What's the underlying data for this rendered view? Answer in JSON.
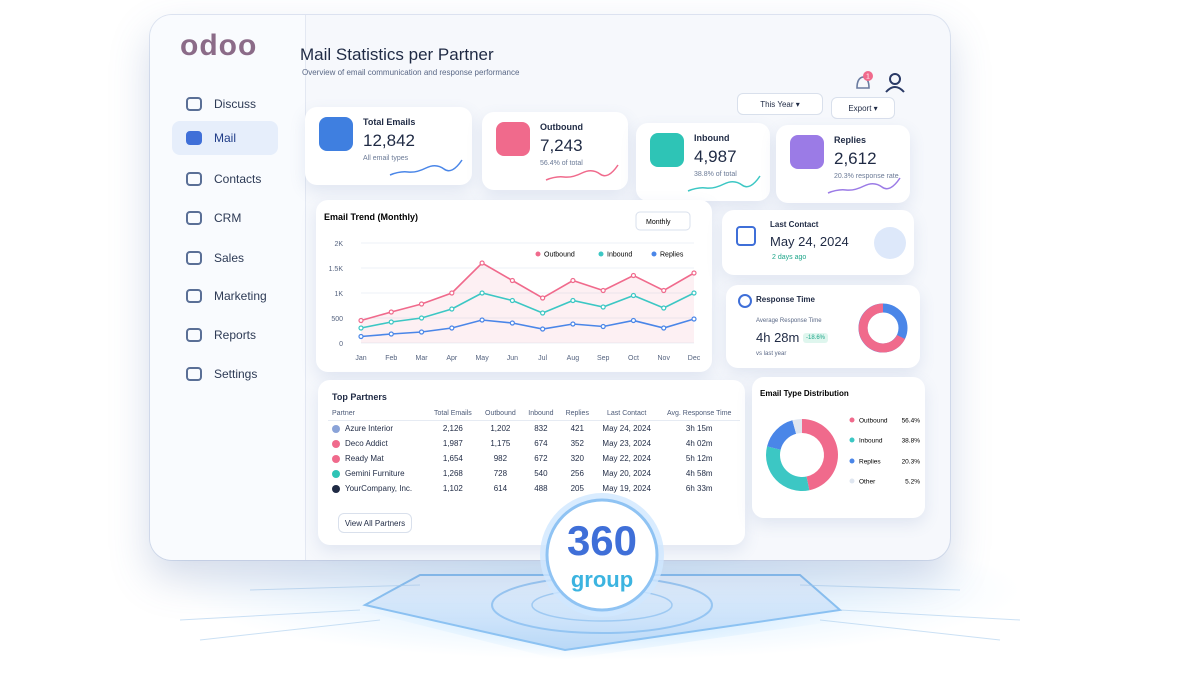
{
  "brand": "odoo",
  "nav": [
    "Discuss",
    "Mail",
    "Contacts",
    "CRM",
    "Sales",
    "Marketing",
    "Reports",
    "Settings"
  ],
  "header": {
    "title": "Mail Statistics per Partner",
    "subtitle": "Overview of email communication and response performance",
    "notifications": "1",
    "period": "This Year",
    "export": "Export"
  },
  "kpis": [
    {
      "label": "Total Emails",
      "value": "12,842",
      "note": "All email types"
    },
    {
      "label": "Outbound",
      "value": "7,243",
      "note": "56.4% of total"
    },
    {
      "label": "Inbound",
      "value": "4,987",
      "note": "38.8% of total"
    },
    {
      "label": "Replies",
      "value": "2,612",
      "note": "20.3% response rate"
    }
  ],
  "email_trend": {
    "type": "line",
    "title": "Email Trend (Monthly)",
    "granularity": "Monthly",
    "categories": [
      "Jan",
      "Feb",
      "Mar",
      "Apr",
      "May",
      "Jun",
      "Jul",
      "Aug",
      "Sep",
      "Oct",
      "Nov",
      "Dec"
    ],
    "series": [
      {
        "name": "Outbound",
        "color": "#f06a8c",
        "values": [
          450,
          620,
          780,
          1000,
          1600,
          1250,
          900,
          1250,
          1050,
          1350,
          1050,
          1400
        ]
      },
      {
        "name": "Inbound",
        "color": "#3cc7c4",
        "values": [
          300,
          420,
          500,
          680,
          1000,
          850,
          600,
          850,
          720,
          950,
          700,
          1000
        ]
      },
      {
        "name": "Replies",
        "color": "#4a86e8",
        "values": [
          130,
          180,
          220,
          300,
          460,
          400,
          280,
          380,
          330,
          450,
          300,
          480
        ]
      }
    ],
    "ylim": [
      0,
      2000
    ],
    "yticks": [
      0,
      500,
      {
        "value": 1000,
        "label": "1K"
      },
      {
        "value": 1500,
        "label": "1.5K"
      },
      {
        "value": 2000,
        "label": "2K"
      }
    ],
    "grid": true
  },
  "last_contact": {
    "title": "Last Contact",
    "date": "May 24, 2024",
    "ago": "2 days ago"
  },
  "response_time": {
    "title": "Response Time",
    "label": "Average Response Time",
    "value": "4h 28m",
    "change": "-18.6%",
    "compare": "vs last year"
  },
  "table": {
    "title": "Top Partners",
    "columns": [
      "Partner",
      "Total Emails",
      "Outbound",
      "Inbound",
      "Replies",
      "Last Contact",
      "Avg. Response Time"
    ],
    "rows": [
      [
        "Azure Interior",
        "2,126",
        "1,202",
        "832",
        "421",
        "May 24, 2024",
        "3h 15m"
      ],
      [
        "Deco Addict",
        "1,987",
        "1,175",
        "674",
        "352",
        "May 23, 2024",
        "4h 02m"
      ],
      [
        "Ready Mat",
        "1,654",
        "982",
        "672",
        "320",
        "May 22, 2024",
        "5h 12m"
      ],
      [
        "Gemini Furniture",
        "1,268",
        "728",
        "540",
        "256",
        "May 20, 2024",
        "4h 58m"
      ],
      [
        "YourCompany, Inc.",
        "1,102",
        "614",
        "488",
        "205",
        "May 19, 2024",
        "6h 33m"
      ]
    ],
    "button": "View All Partners"
  },
  "email_type_distribution": {
    "type": "donut",
    "title": "Email Type Distribution",
    "categories": [
      "Outbound",
      "Inbound",
      "Replies",
      "Other"
    ],
    "values": [
      56.4,
      38.8,
      20.3,
      5.2
    ],
    "value_labels": [
      "56.4%",
      "38.8%",
      "20.3%",
      "5.2%"
    ],
    "colors": [
      "#f06a8c",
      "#3cc7c4",
      "#4a86e8",
      "#dfe6f0"
    ]
  },
  "logo": {
    "number": "360",
    "word": "group"
  }
}
